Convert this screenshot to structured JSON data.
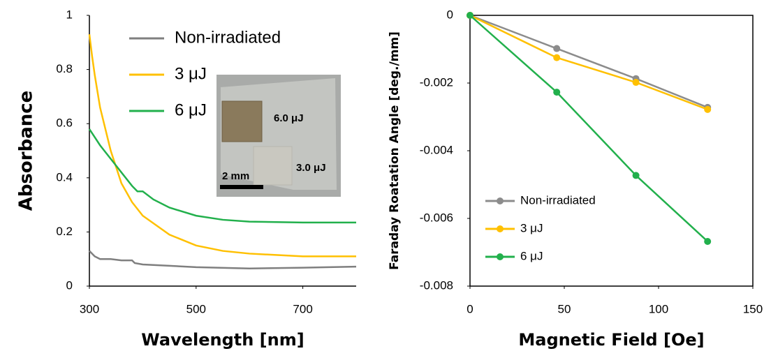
{
  "chart_data": [
    {
      "type": "line",
      "ylabel": "Absorbance",
      "xlabel": "Wavelength [nm]",
      "xlim": [
        300,
        800
      ],
      "xticks": [
        300,
        500,
        700
      ],
      "ylim": [
        0,
        1
      ],
      "yticks": [
        0,
        0.2,
        0.4,
        0.6,
        0.8,
        1
      ],
      "legend": "upper left",
      "grid": false,
      "inset_labels": [
        "6.0 μJ",
        "3.0 μJ",
        "2 mm"
      ],
      "series": [
        {
          "name": "Non-irradiated",
          "color": "#7f7f7f",
          "x": [
            300,
            305,
            310,
            320,
            340,
            360,
            380,
            385,
            400,
            450,
            500,
            600,
            700,
            800
          ],
          "values": [
            0.13,
            0.12,
            0.11,
            0.1,
            0.1,
            0.095,
            0.095,
            0.085,
            0.08,
            0.075,
            0.07,
            0.065,
            0.068,
            0.072
          ]
        },
        {
          "name": "3 μJ",
          "color": "#ffc000",
          "x": [
            300,
            305,
            310,
            320,
            340,
            360,
            380,
            400,
            450,
            500,
            550,
            600,
            700,
            800
          ],
          "values": [
            0.93,
            0.85,
            0.78,
            0.66,
            0.5,
            0.38,
            0.31,
            0.26,
            0.19,
            0.15,
            0.13,
            0.12,
            0.11,
            0.11
          ]
        },
        {
          "name": "6 μJ",
          "color": "#22b04c",
          "x": [
            300,
            310,
            320,
            340,
            360,
            380,
            390,
            400,
            420,
            450,
            500,
            550,
            600,
            700,
            800
          ],
          "values": [
            0.58,
            0.55,
            0.52,
            0.47,
            0.42,
            0.37,
            0.35,
            0.35,
            0.32,
            0.29,
            0.26,
            0.245,
            0.238,
            0.235,
            0.235
          ]
        }
      ]
    },
    {
      "type": "line-marker",
      "ylabel": "Faraday Roatation Angle [deg./mm]",
      "xlabel": "Magnetic Field [Oe]",
      "xlim": [
        0,
        150
      ],
      "xticks": [
        0,
        50,
        100,
        150
      ],
      "ylim": [
        -0.008,
        0
      ],
      "yticks": [
        0,
        -0.002,
        -0.004,
        -0.006,
        -0.008
      ],
      "legend": "lower left",
      "grid": false,
      "x": [
        0,
        46,
        88,
        126
      ],
      "series": [
        {
          "name": "Non-irradiated",
          "color": "#8c8c8c",
          "values": [
            0,
            -0.00098,
            -0.00187,
            -0.00272
          ]
        },
        {
          "name": "3 μJ",
          "color": "#ffc000",
          "values": [
            0,
            -0.00125,
            -0.00198,
            -0.00278
          ]
        },
        {
          "name": "6 μJ",
          "color": "#22b04c",
          "values": [
            0,
            -0.00227,
            -0.00473,
            -0.00668
          ]
        }
      ]
    }
  ]
}
